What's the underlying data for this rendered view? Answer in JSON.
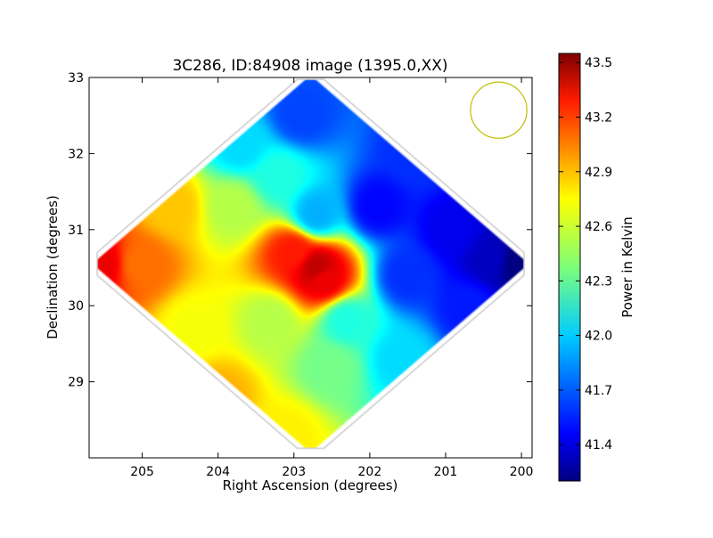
{
  "chart_data": {
    "type": "heatmap",
    "title": "3C286, ID:84908 image (1395.0,XX)",
    "xlabel": "Right Ascension (degrees)",
    "ylabel": "Declination (degrees)",
    "xlim": [
      205.7,
      199.86
    ],
    "ylim": [
      28.0,
      33.0
    ],
    "x_ticks": [
      "205",
      "204",
      "203",
      "202",
      "201",
      "200"
    ],
    "x_tick_values": [
      205,
      204,
      203,
      202,
      201,
      200
    ],
    "y_ticks": [
      "29",
      "30",
      "31",
      "32",
      "33"
    ],
    "y_tick_values": [
      29,
      30,
      31,
      32,
      33
    ],
    "map_center": {
      "ra": 202.78,
      "dec": 30.55
    },
    "map_half_extent": {
      "ra": 2.9,
      "dec": 2.5
    },
    "beam": {
      "ra": 200.3,
      "dec": 32.57,
      "radius_deg": 0.37,
      "color": "#bfbf00"
    },
    "colorbar": {
      "label": "Power in Kelvin",
      "min": 41.2,
      "max": 43.55,
      "ticks": [
        "41.4",
        "41.7",
        "42.0",
        "42.3",
        "42.6",
        "42.9",
        "43.2",
        "43.5"
      ],
      "tick_values": [
        41.4,
        41.7,
        42.0,
        42.3,
        42.6,
        42.9,
        43.2,
        43.5
      ],
      "colormap": "jet"
    },
    "field_samples": [
      {
        "ra": 205.55,
        "dec": 30.55,
        "value": 43.3
      },
      {
        "ra": 205.0,
        "dec": 30.55,
        "value": 43.0
      },
      {
        "ra": 204.6,
        "dec": 31.3,
        "value": 42.8
      },
      {
        "ra": 204.3,
        "dec": 29.7,
        "value": 42.65
      },
      {
        "ra": 204.0,
        "dec": 28.8,
        "value": 42.85
      },
      {
        "ra": 203.1,
        "dec": 28.3,
        "value": 42.7
      },
      {
        "ra": 203.8,
        "dec": 31.3,
        "value": 42.5
      },
      {
        "ra": 203.3,
        "dec": 29.8,
        "value": 42.5
      },
      {
        "ra": 202.5,
        "dec": 29.2,
        "value": 42.35
      },
      {
        "ra": 202.3,
        "dec": 29.8,
        "value": 42.15
      },
      {
        "ra": 201.6,
        "dec": 29.3,
        "value": 42.0
      },
      {
        "ra": 203.2,
        "dec": 31.7,
        "value": 42.15
      },
      {
        "ra": 203.7,
        "dec": 32.1,
        "value": 42.0
      },
      {
        "ra": 202.9,
        "dec": 32.5,
        "value": 41.65
      },
      {
        "ra": 202.7,
        "dec": 31.2,
        "value": 41.9
      },
      {
        "ra": 201.9,
        "dec": 31.3,
        "value": 41.5
      },
      {
        "ra": 201.4,
        "dec": 32.0,
        "value": 41.6
      },
      {
        "ra": 201.5,
        "dec": 30.4,
        "value": 41.6
      },
      {
        "ra": 200.9,
        "dec": 31.0,
        "value": 41.45
      },
      {
        "ra": 200.7,
        "dec": 30.0,
        "value": 41.55
      },
      {
        "ra": 200.4,
        "dec": 30.6,
        "value": 41.35
      },
      {
        "ra": 200.05,
        "dec": 30.55,
        "value": 41.2
      },
      {
        "ra": 202.7,
        "dec": 30.5,
        "value": 43.4
      },
      {
        "ra": 203.0,
        "dec": 30.7,
        "value": 43.2
      },
      {
        "ra": 202.6,
        "dec": 30.35,
        "value": 43.3
      }
    ]
  }
}
